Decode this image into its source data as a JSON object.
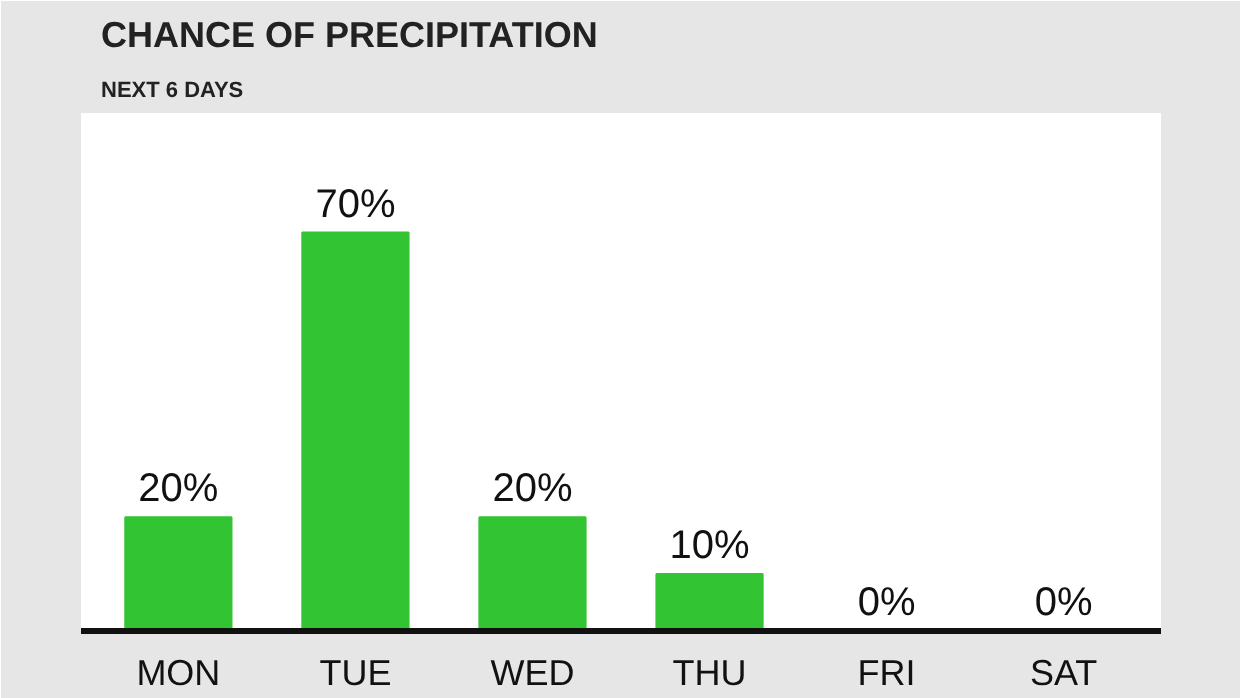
{
  "chart_data": {
    "type": "bar",
    "title": "CHANCE OF PRECIPITATION",
    "subtitle": "NEXT 6 DAYS",
    "categories": [
      "MON",
      "TUE",
      "WED",
      "THU",
      "FRI",
      "SAT"
    ],
    "values": [
      20,
      70,
      20,
      10,
      0,
      0
    ],
    "value_labels": [
      "20%",
      "70%",
      "20%",
      "10%",
      "0%",
      "0%"
    ],
    "color": "#33c433",
    "grid": false
  }
}
